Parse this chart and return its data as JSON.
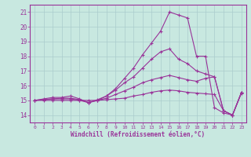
{
  "xlabel": "Windchill (Refroidissement éolien,°C)",
  "background_color": "#c8e8e0",
  "line_color": "#993399",
  "grid_color": "#aacccc",
  "xlim": [
    -0.5,
    23.5
  ],
  "ylim": [
    13.5,
    21.5
  ],
  "yticks": [
    14,
    15,
    16,
    17,
    18,
    19,
    20,
    21
  ],
  "xticks": [
    0,
    1,
    2,
    3,
    4,
    5,
    6,
    7,
    8,
    9,
    10,
    11,
    12,
    13,
    14,
    15,
    16,
    17,
    18,
    19,
    20,
    21,
    22,
    23
  ],
  "line1": [
    15.0,
    15.1,
    15.2,
    15.2,
    15.3,
    15.1,
    14.85,
    15.05,
    15.3,
    15.8,
    16.5,
    17.2,
    18.1,
    18.9,
    19.7,
    21.0,
    20.8,
    20.6,
    18.0,
    18.0,
    14.5,
    14.15,
    14.0,
    15.5
  ],
  "line2": [
    15.0,
    15.05,
    15.1,
    15.15,
    15.15,
    15.05,
    14.85,
    15.0,
    15.3,
    15.7,
    16.2,
    16.6,
    17.2,
    17.8,
    18.3,
    18.5,
    17.8,
    17.5,
    17.0,
    16.8,
    16.6,
    14.3,
    14.0,
    15.55
  ],
  "line3": [
    15.0,
    15.05,
    15.1,
    15.1,
    15.1,
    15.0,
    14.85,
    15.0,
    15.15,
    15.4,
    15.65,
    15.9,
    16.2,
    16.4,
    16.55,
    16.7,
    16.55,
    16.4,
    16.3,
    16.5,
    16.6,
    14.3,
    14.0,
    15.55
  ],
  "line4": [
    15.0,
    15.0,
    15.0,
    15.0,
    15.0,
    15.0,
    15.0,
    15.0,
    15.05,
    15.1,
    15.15,
    15.3,
    15.4,
    15.55,
    15.65,
    15.7,
    15.65,
    15.55,
    15.5,
    15.45,
    15.4,
    14.3,
    14.0,
    15.55
  ]
}
